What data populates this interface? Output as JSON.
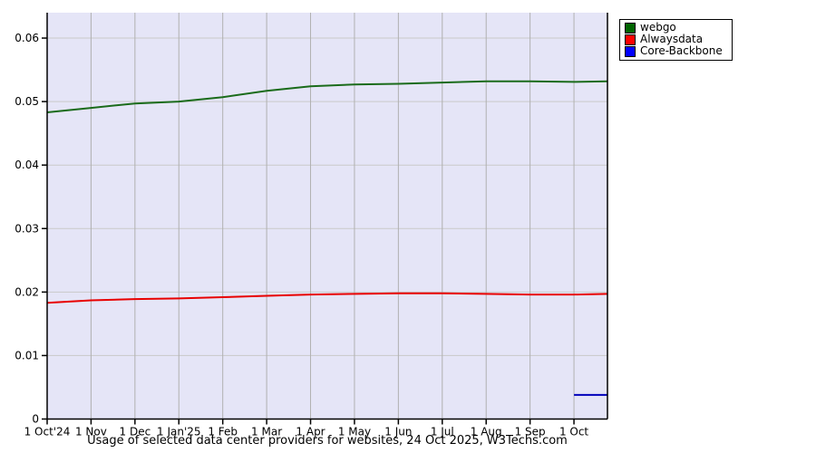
{
  "page": {
    "title": "Usage of selected data center providers for websites, 24 Oct 2025, W3Techs.com"
  },
  "legend": {
    "items": [
      {
        "label": "webgo",
        "color": "#006400"
      },
      {
        "label": "Alwaysdata",
        "color": "#ff0000"
      },
      {
        "label": "Core-Backbone",
        "color": "#0000ff"
      }
    ]
  },
  "colors": {
    "plot_background": "#e5e5f7",
    "h_gridline": "#c9c9c9",
    "v_gridline": "#b0b0b0",
    "axis": "#000000",
    "webgo_line": "#1a6b1a",
    "alwaysdata_line": "#e80000",
    "corebackbone_line": "#0000bb"
  },
  "chart_data": {
    "type": "line",
    "title": "Usage of selected data center providers for websites, 24 Oct 2025, W3Techs.com",
    "xlabel": "",
    "ylabel": "",
    "grid": true,
    "legend_position": "top-right-outside",
    "ylim": [
      0,
      0.064
    ],
    "y_ticks": [
      0,
      0.01,
      0.02,
      0.03,
      0.04,
      0.05,
      0.06
    ],
    "y_tick_labels": [
      "0",
      "0.01",
      "0.02",
      "0.03",
      "0.04",
      "0.05",
      "0.06"
    ],
    "x_tick_labels": [
      "1 Oct'24",
      "1 Nov",
      "1 Dec",
      "1 Jan'25",
      "1 Feb",
      "1 Mar",
      "1 Apr",
      "1 May",
      "1 Jun",
      "1 Jul",
      "1 Aug",
      "1 Sep",
      "1 Oct"
    ],
    "x": [
      0,
      1,
      2,
      3,
      4,
      5,
      6,
      7,
      8,
      9,
      10,
      11,
      12,
      12.763
    ],
    "x_point_dates": [
      "1 Oct 2024",
      "1 Nov 2024",
      "1 Dec 2024",
      "1 Jan 2025",
      "1 Feb 2025",
      "1 Mar 2025",
      "1 Apr 2025",
      "1 May 2025",
      "1 Jun 2025",
      "1 Jul 2025",
      "1 Aug 2025",
      "1 Sep 2025",
      "1 Oct 2025",
      "24 Oct 2025"
    ],
    "series": [
      {
        "name": "webgo",
        "color": "#1a6b1a",
        "values": [
          0.0483,
          0.049,
          0.0497,
          0.05,
          0.0507,
          0.0517,
          0.0524,
          0.0527,
          0.0528,
          0.053,
          0.0532,
          0.0532,
          0.0531,
          0.0532
        ]
      },
      {
        "name": "Alwaysdata",
        "color": "#e80000",
        "values": [
          0.0183,
          0.0187,
          0.0189,
          0.019,
          0.0192,
          0.0194,
          0.0196,
          0.0197,
          0.0198,
          0.0198,
          0.0197,
          0.0196,
          0.0196,
          0.0197
        ]
      },
      {
        "name": "Core-Backbone",
        "color": "#0000bb",
        "values": [
          null,
          null,
          null,
          null,
          null,
          null,
          null,
          null,
          null,
          null,
          null,
          null,
          0.0038,
          0.0038
        ]
      }
    ]
  }
}
